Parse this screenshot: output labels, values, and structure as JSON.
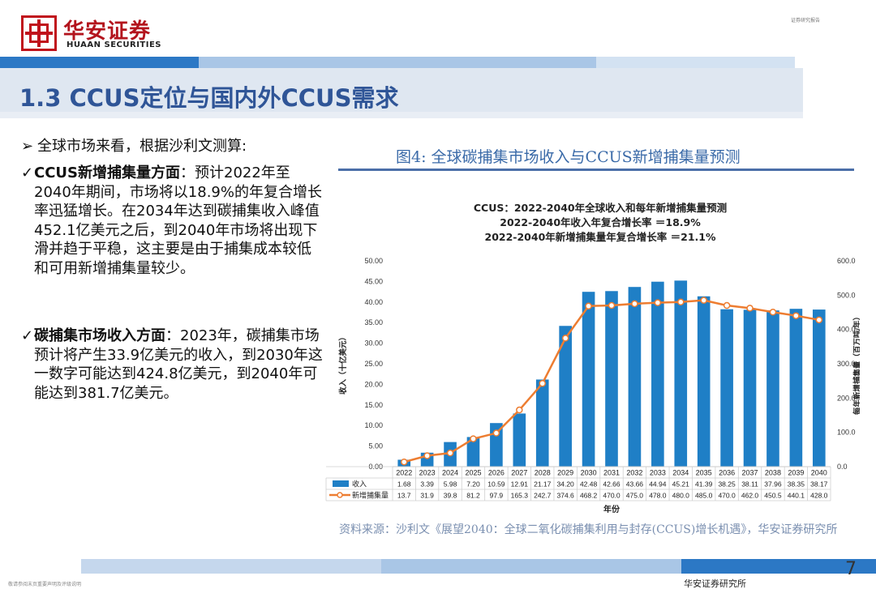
{
  "header": {
    "brand_cn": "华安证券",
    "brand_en": "HUAAN SECURITIES",
    "top_right_small": "证券研究报告",
    "brand_color": "#c0111b"
  },
  "slide": {
    "title": "1.3 CCUS定位与国内外CCUS需求",
    "intro": "全球市场来看，根据沙利文测算:",
    "point1_head": "CCUS新增捕集量方面",
    "point1_body": "：预计2022年至2040年期间，市场将以18.9%的年复合增长率迅猛增长。在2034年达到碳捕集收入峰值452.1亿美元之后，到2040年市场将出现下滑并趋于平稳，这主要是由于捕集成本较低和可用新增捕集量较少。",
    "point2_head": "碳捕集市场收入方面",
    "point2_body": "：2023年，碳捕集市场预计将产生33.9亿美元的收入，到2030年这一数字可能达到424.8亿美元，到2040年可能达到381.7亿美元。",
    "figure_title": "图4:  全球碳捕集市场收入与CCUS新增捕集量预测",
    "source": "资料来源：沙利文《展望2040：全球二氧化碳捕集利用与封存(CCUS)增长机遇》，华安证券研究所",
    "page_number": "7",
    "footer_org": "华安证券研究所",
    "footer_note": "敬请参阅末页重要声明及评级说明"
  },
  "chart_data": {
    "type": "bar+line",
    "title_lines": [
      "CCUS：2022-2040年全球收入和每年新增捕集量预测",
      "2022-2040年收入年复合增长率 ＝18.9%",
      "2022-2040年新增捕集量年复合增长率 ＝21.1%"
    ],
    "xlabel": "年份",
    "ylabel_left": "收入（十亿美元）",
    "ylabel_right": "每年新增捕集量（百万吨/年）",
    "ylim_left": [
      0,
      50
    ],
    "ylim_right": [
      0,
      600
    ],
    "yticks_left": [
      "0.00",
      "5.00",
      "10.00",
      "15.00",
      "20.00",
      "25.00",
      "30.00",
      "35.00",
      "40.00",
      "45.00",
      "50.00"
    ],
    "yticks_right": [
      "0.0",
      "100.0",
      "200.0",
      "300.0",
      "400.0",
      "500.0",
      "600.0"
    ],
    "categories": [
      "2022",
      "2023",
      "2024",
      "2025",
      "2026",
      "2027",
      "2028",
      "2029",
      "2030",
      "2031",
      "2032",
      "2033",
      "2034",
      "2035",
      "2036",
      "2037",
      "2038",
      "2039",
      "2040"
    ],
    "series": [
      {
        "name": "收入",
        "kind": "bar",
        "axis": "left",
        "color": "#1f7fc6",
        "values": [
          1.68,
          3.39,
          5.98,
          7.2,
          10.59,
          12.91,
          21.17,
          34.2,
          42.48,
          42.66,
          43.66,
          44.94,
          45.21,
          41.39,
          38.25,
          38.11,
          37.96,
          38.35,
          38.17
        ],
        "labels": [
          "1.68",
          "3.39",
          "5.98",
          "7.20",
          "10.59",
          "12.91",
          "21.17",
          "34.20",
          "42.48",
          "42.66",
          "43.66",
          "44.94",
          "45.21",
          "41.39",
          "38.25",
          "38.11",
          "37.96",
          "38.35",
          "38.17"
        ]
      },
      {
        "name": "新增捕集量",
        "kind": "line",
        "axis": "right",
        "color": "#ed7d31",
        "values": [
          13.7,
          31.9,
          39.8,
          81.2,
          97.9,
          165.3,
          242.7,
          374.6,
          468.2,
          470.0,
          475.0,
          478.0,
          480.0,
          485.0,
          470.0,
          462.0,
          450.5,
          440.1,
          428.0
        ],
        "labels": [
          "13.7",
          "31.9",
          "39.8",
          "81.2",
          "97.9",
          "165.3",
          "242.7",
          "374.6",
          "468.2",
          "470.0",
          "475.0",
          "478.0",
          "480.0",
          "485.0",
          "470.0",
          "462.0",
          "450.5",
          "440.1",
          "428.0"
        ]
      }
    ],
    "grid": false,
    "legend": "data-table"
  }
}
